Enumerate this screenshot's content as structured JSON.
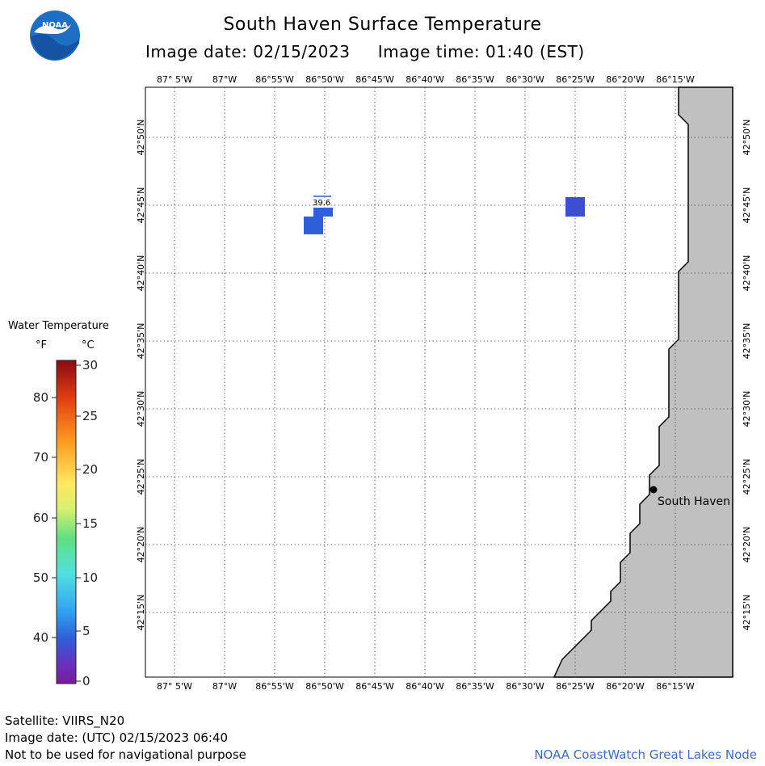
{
  "title": "South Haven Surface Temperature",
  "subtitle": "Image date: 02/15/2023     Image time: 01:40 (EST)",
  "logo": {
    "text": "NOAA",
    "icon": "noaa-logo-icon",
    "colors": {
      "outer": "#1e6fc4",
      "inner": "#ffffff"
    }
  },
  "map": {
    "lon_labels": [
      "87° 5'W",
      "87°W",
      "86°55'W",
      "86°50'W",
      "86°45'W",
      "86°40'W",
      "86°35'W",
      "86°30'W",
      "86°25'W",
      "86°20'W",
      "86°15'W"
    ],
    "lat_labels": [
      "42°50'N",
      "42°45'N",
      "42°40'N",
      "42°35'N",
      "42°30'N",
      "42°25'N",
      "42°20'N",
      "42°15'N"
    ],
    "land_color": "#c0c0c0",
    "water_color": "#ffffff",
    "city": {
      "name": "South Haven"
    },
    "sample_label": "39.6",
    "pixel_colors": [
      "#2d5fd8",
      "#2d5fd8",
      "#3b4fd0"
    ]
  },
  "legend": {
    "title": "Water Temperature",
    "unit_f": "°F",
    "unit_c": "°C",
    "f_ticks": [
      "80",
      "70",
      "60",
      "50",
      "40"
    ],
    "c_ticks": [
      "30",
      "25",
      "20",
      "15",
      "10",
      "5",
      "0"
    ],
    "gradient_colors": [
      "#8b0a14",
      "#e04010",
      "#ff9a20",
      "#ffe860",
      "#d8f070",
      "#60e080",
      "#50e0e0",
      "#30a0f0",
      "#2d5fd8",
      "#6a30c0",
      "#7a1a9a"
    ]
  },
  "footer": {
    "satellite": "Satellite: VIIRS_N20",
    "utc_date": "Image date: (UTC) 02/15/2023  06:40",
    "note": "Not to be used for navigational purpose",
    "credit": "NOAA CoastWatch Great Lakes Node"
  }
}
